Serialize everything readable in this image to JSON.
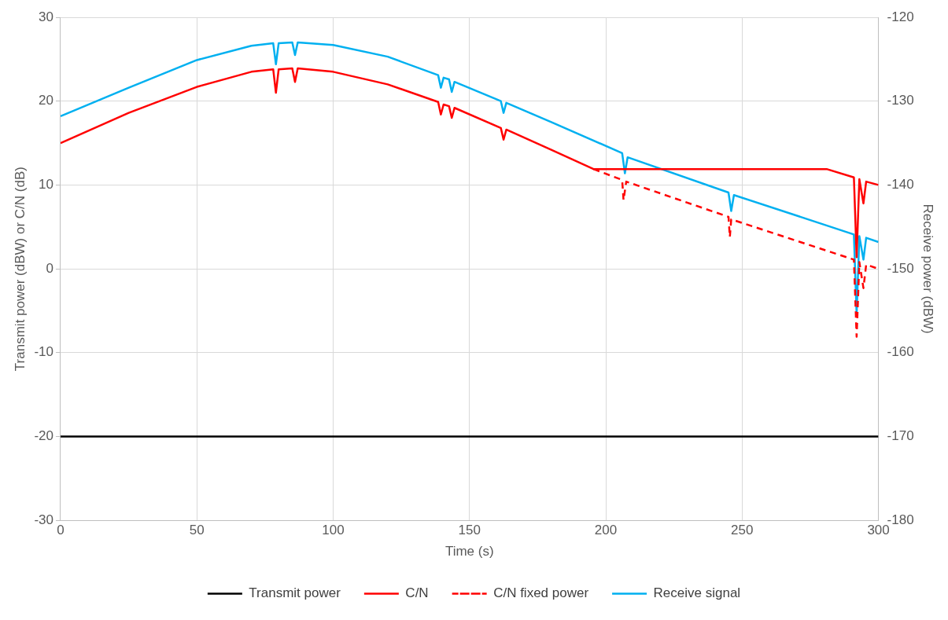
{
  "chart_data": {
    "type": "line",
    "xlabel": "Time (s)",
    "ylabel": "Transmit power (dBW) or C/N (dB)",
    "y2label": "Receive power (dBW)",
    "xlim": [
      0,
      300
    ],
    "xticks": [
      0,
      50,
      100,
      150,
      200,
      250,
      300
    ],
    "ylim": [
      -30,
      30
    ],
    "yticks": [
      -30,
      -20,
      -10,
      0,
      10,
      20,
      30
    ],
    "y2lim": [
      -180,
      -120
    ],
    "y2ticks": [
      -180,
      -170,
      -160,
      -150,
      -140,
      -130,
      -120
    ],
    "grid": true,
    "legend": "bottom",
    "marker": "none",
    "series": [
      {
        "name": "Transmit power",
        "color": "#000000",
        "line_style": "solid",
        "x": [
          0,
          300
        ],
        "values": [
          -20,
          -20
        ]
      },
      {
        "name": "C/N",
        "color": "#ff0000",
        "line_style": "solid",
        "x": [
          0,
          25,
          50,
          70,
          78,
          79,
          80,
          85,
          86,
          87,
          100,
          120,
          138.5,
          139.5,
          140.5,
          142.5,
          143.5,
          144.5,
          161.5,
          162.5,
          163.5,
          180,
          195.5,
          281,
          291,
          292,
          293,
          294.5,
          295.5,
          300
        ],
        "values": [
          15.0,
          18.6,
          21.7,
          23.5,
          23.8,
          21.0,
          23.8,
          23.9,
          22.3,
          23.9,
          23.5,
          22.0,
          19.9,
          18.4,
          19.6,
          19.4,
          18.0,
          19.2,
          16.8,
          15.4,
          16.6,
          14.2,
          11.9,
          11.9,
          10.9,
          1.4,
          10.7,
          7.8,
          10.4,
          10.0
        ]
      },
      {
        "name": "C/N fixed power",
        "color": "#ff0000",
        "line_style": "dashed",
        "x": [
          195.5,
          206,
          206.5,
          207.5,
          245,
          245.5,
          246,
          291,
          292,
          293,
          294.5,
          295.5,
          300
        ],
        "values": [
          11.9,
          10.6,
          8.2,
          10.4,
          6.2,
          3.8,
          5.9,
          1.1,
          -8.1,
          0.8,
          -2.3,
          0.5,
          0.0
        ]
      },
      {
        "name": "Receive signal",
        "color": "#00b0f0",
        "line_style": "solid",
        "axis": "y2",
        "x": [
          0,
          25,
          50,
          70,
          78,
          79,
          80,
          85,
          86,
          87,
          100,
          120,
          138.5,
          139.5,
          140.5,
          142.5,
          143.5,
          144.5,
          161.5,
          162.5,
          163.5,
          180,
          206,
          207,
          208,
          245,
          246,
          247,
          291,
          292,
          293,
          294.5,
          295.5,
          300
        ],
        "values": [
          -131.8,
          -128.4,
          -125.1,
          -123.4,
          -123.1,
          -125.6,
          -123.1,
          -123.0,
          -124.5,
          -123.0,
          -123.3,
          -124.7,
          -126.9,
          -128.4,
          -127.2,
          -127.4,
          -128.9,
          -127.7,
          -130.0,
          -131.4,
          -130.2,
          -132.5,
          -136.2,
          -138.6,
          -136.7,
          -140.9,
          -143.1,
          -141.2,
          -145.9,
          -155.4,
          -146.1,
          -148.9,
          -146.3,
          -146.8
        ]
      }
    ]
  }
}
